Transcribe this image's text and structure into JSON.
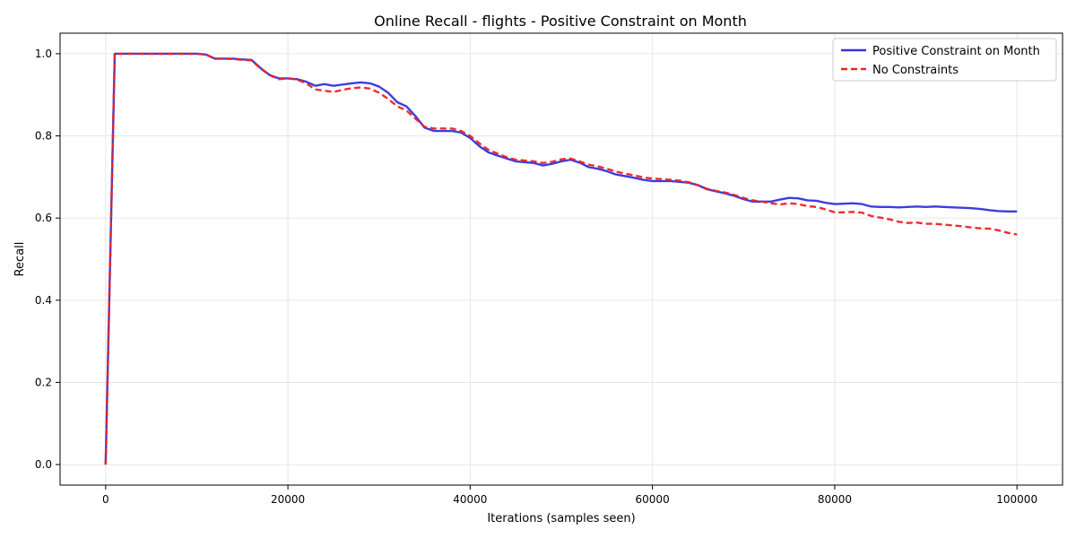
{
  "chart_data": {
    "type": "line",
    "title": "Online Recall - flights - Positive Constraint on Month",
    "xlabel": "Iterations (samples seen)",
    "ylabel": "Recall",
    "xlim": [
      -5000,
      105000
    ],
    "ylim": [
      -0.05,
      1.05
    ],
    "xticks": [
      0,
      20000,
      40000,
      60000,
      80000,
      100000
    ],
    "yticks": [
      0.0,
      0.2,
      0.4,
      0.6,
      0.8,
      1.0
    ],
    "xtick_labels": [
      "0",
      "20000",
      "40000",
      "60000",
      "80000",
      "100000"
    ],
    "ytick_labels": [
      "0.0",
      "0.2",
      "0.4",
      "0.6",
      "0.8",
      "1.0"
    ],
    "grid": true,
    "legend": "top-right",
    "series": [
      {
        "name": "Positive Constraint on Month",
        "color": "#3333dd",
        "style": "solid",
        "x": [
          0,
          1000,
          2000,
          5000,
          8000,
          10000,
          11000,
          12000,
          13000,
          14000,
          15000,
          16000,
          17000,
          18000,
          19000,
          20000,
          21000,
          22000,
          23000,
          24000,
          25000,
          26000,
          27000,
          28000,
          29000,
          30000,
          31000,
          32000,
          33000,
          34000,
          35000,
          36000,
          37000,
          38000,
          39000,
          40000,
          41000,
          42000,
          43000,
          44000,
          45000,
          46000,
          47000,
          48000,
          49000,
          50000,
          51000,
          52000,
          53000,
          54000,
          55000,
          56000,
          57000,
          58000,
          59000,
          60000,
          61000,
          62000,
          63000,
          64000,
          65000,
          66000,
          67000,
          68000,
          69000,
          70000,
          71000,
          72000,
          73000,
          74000,
          75000,
          76000,
          77000,
          78000,
          79000,
          80000,
          81000,
          82000,
          83000,
          84000,
          85000,
          86000,
          87000,
          88000,
          89000,
          90000,
          91000,
          92000,
          93000,
          94000,
          95000,
          96000,
          97000,
          98000,
          99000,
          100000
        ],
        "y": [
          0.0,
          1.0,
          1.0,
          1.0,
          1.0,
          1.0,
          0.998,
          0.988,
          0.988,
          0.988,
          0.986,
          0.985,
          0.965,
          0.948,
          0.94,
          0.94,
          0.938,
          0.932,
          0.922,
          0.926,
          0.922,
          0.925,
          0.928,
          0.93,
          0.928,
          0.92,
          0.905,
          0.882,
          0.872,
          0.848,
          0.82,
          0.812,
          0.812,
          0.812,
          0.808,
          0.795,
          0.775,
          0.76,
          0.752,
          0.745,
          0.738,
          0.736,
          0.734,
          0.728,
          0.732,
          0.738,
          0.742,
          0.735,
          0.724,
          0.72,
          0.714,
          0.706,
          0.702,
          0.698,
          0.693,
          0.69,
          0.69,
          0.69,
          0.688,
          0.686,
          0.68,
          0.67,
          0.665,
          0.66,
          0.654,
          0.646,
          0.64,
          0.64,
          0.64,
          0.645,
          0.649,
          0.648,
          0.643,
          0.642,
          0.637,
          0.634,
          0.635,
          0.636,
          0.634,
          0.628,
          0.627,
          0.627,
          0.626,
          0.627,
          0.628,
          0.627,
          0.628,
          0.627,
          0.626,
          0.625,
          0.624,
          0.622,
          0.619,
          0.617,
          0.616,
          0.616
        ]
      },
      {
        "name": "No Constraints",
        "color": "#ee2222",
        "style": "dashed",
        "x": [
          0,
          1000,
          2000,
          5000,
          8000,
          10000,
          11000,
          12000,
          13000,
          14000,
          15000,
          16000,
          17000,
          18000,
          19000,
          20000,
          21000,
          22000,
          23000,
          24000,
          25000,
          26000,
          27000,
          28000,
          29000,
          30000,
          31000,
          32000,
          33000,
          34000,
          35000,
          36000,
          37000,
          38000,
          39000,
          40000,
          41000,
          42000,
          43000,
          44000,
          45000,
          46000,
          47000,
          48000,
          49000,
          50000,
          51000,
          52000,
          53000,
          54000,
          55000,
          56000,
          57000,
          58000,
          59000,
          60000,
          61000,
          62000,
          63000,
          64000,
          65000,
          66000,
          67000,
          68000,
          69000,
          70000,
          71000,
          72000,
          73000,
          74000,
          75000,
          76000,
          77000,
          78000,
          79000,
          80000,
          81000,
          82000,
          83000,
          84000,
          85000,
          86000,
          87000,
          88000,
          89000,
          90000,
          91000,
          92000,
          93000,
          94000,
          95000,
          96000,
          97000,
          98000,
          99000,
          100000
        ],
        "y": [
          0.0,
          1.0,
          1.0,
          1.0,
          1.0,
          1.0,
          0.998,
          0.988,
          0.988,
          0.987,
          0.985,
          0.984,
          0.964,
          0.948,
          0.938,
          0.94,
          0.937,
          0.928,
          0.913,
          0.91,
          0.907,
          0.912,
          0.916,
          0.918,
          0.915,
          0.905,
          0.89,
          0.872,
          0.862,
          0.842,
          0.822,
          0.818,
          0.818,
          0.818,
          0.812,
          0.8,
          0.782,
          0.766,
          0.757,
          0.748,
          0.742,
          0.74,
          0.738,
          0.734,
          0.737,
          0.743,
          0.745,
          0.738,
          0.73,
          0.726,
          0.72,
          0.713,
          0.708,
          0.704,
          0.699,
          0.696,
          0.695,
          0.693,
          0.691,
          0.687,
          0.68,
          0.671,
          0.666,
          0.662,
          0.656,
          0.649,
          0.643,
          0.64,
          0.636,
          0.633,
          0.636,
          0.634,
          0.629,
          0.627,
          0.621,
          0.614,
          0.614,
          0.615,
          0.613,
          0.605,
          0.601,
          0.597,
          0.591,
          0.588,
          0.589,
          0.586,
          0.586,
          0.584,
          0.582,
          0.58,
          0.577,
          0.575,
          0.574,
          0.57,
          0.564,
          0.56
        ]
      }
    ]
  }
}
